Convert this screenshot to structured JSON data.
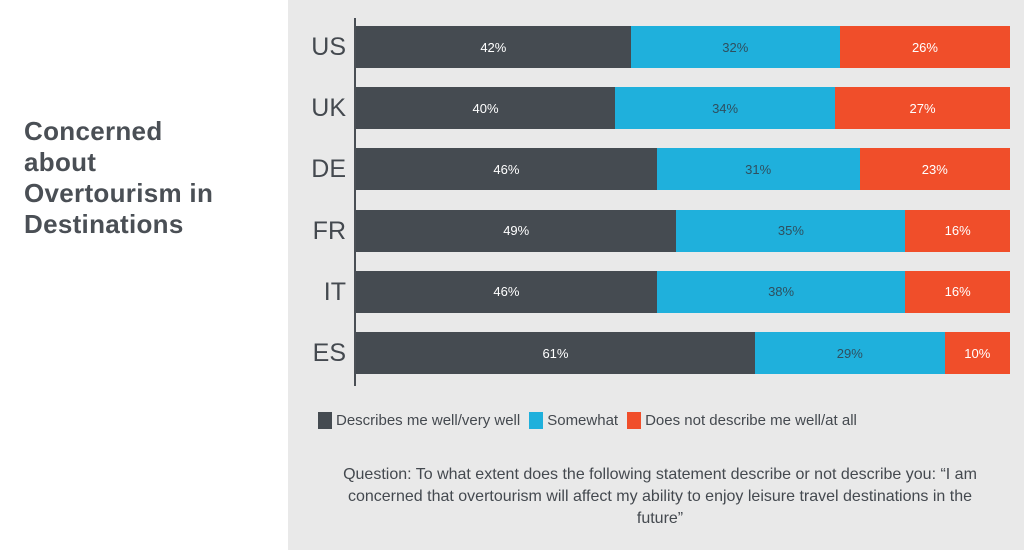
{
  "chart_data": {
    "type": "bar",
    "orientation": "horizontal-stacked",
    "title": "Concerned about Overtourism in Destinations",
    "title_lines": [
      "Concerned",
      "about",
      "Overtourism in",
      "Destinations"
    ],
    "categories": [
      "US",
      "UK",
      "DE",
      "FR",
      "IT",
      "ES"
    ],
    "series": [
      {
        "name": "Describes me well/very well",
        "color": "#454b51",
        "label_color": "#ffffff",
        "values": [
          42,
          40,
          46,
          49,
          46,
          61
        ]
      },
      {
        "name": "Somewhat",
        "color": "#1fb0dc",
        "label_color": "#2f4f5f",
        "values": [
          32,
          34,
          31,
          35,
          38,
          29
        ]
      },
      {
        "name": "Does not describe me well/at all",
        "color": "#f04e2a",
        "label_color": "#ffffff",
        "values": [
          26,
          27,
          23,
          16,
          16,
          10
        ]
      }
    ],
    "value_suffix": "%",
    "legend": "bottom",
    "note": "Question: To what extent does the following statement describe or not describe you: “I am concerned that overtourism will affect my ability to enjoy leisure travel destinations in the future”"
  }
}
